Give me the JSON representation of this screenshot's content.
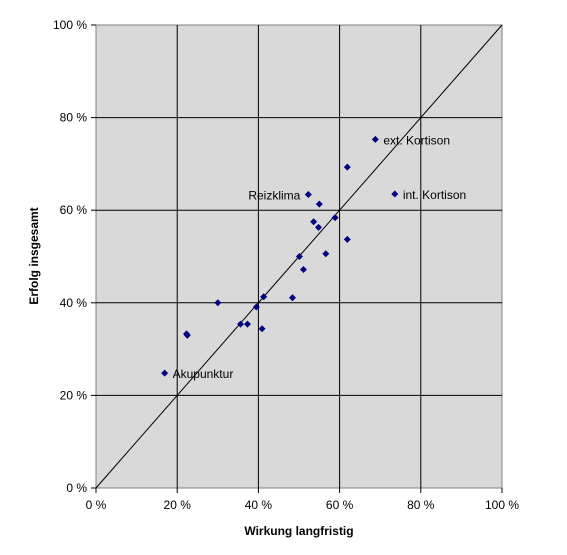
{
  "chart_data": {
    "type": "scatter",
    "xlabel": "Wirkung langfristig",
    "ylabel": "Erfolg insgesamt",
    "xlim": [
      0,
      100
    ],
    "ylim": [
      0,
      100
    ],
    "x_ticks": [
      0,
      20,
      40,
      60,
      80,
      100
    ],
    "y_ticks": [
      0,
      20,
      40,
      60,
      80,
      100
    ],
    "x_tick_labels": [
      "0 %",
      "20 %",
      "40 %",
      "60 %",
      "80 %",
      "100 %"
    ],
    "y_tick_labels": [
      "0 %",
      "20 %",
      "40 %",
      "60 %",
      "80 %",
      "100 %"
    ],
    "grid": true,
    "background_color": "#d9d9d9",
    "marker_color": "#000080",
    "reference_line": {
      "from": [
        0,
        0
      ],
      "to": [
        100,
        100
      ],
      "color": "#000000"
    },
    "points": [
      {
        "x": 16.9,
        "y": 24.8
      },
      {
        "x": 22.3,
        "y": 33.3
      },
      {
        "x": 22.5,
        "y": 33.0
      },
      {
        "x": 30.0,
        "y": 40.0
      },
      {
        "x": 35.6,
        "y": 35.4
      },
      {
        "x": 37.3,
        "y": 35.4
      },
      {
        "x": 39.5,
        "y": 39.1
      },
      {
        "x": 40.9,
        "y": 34.4
      },
      {
        "x": 41.3,
        "y": 41.3
      },
      {
        "x": 48.4,
        "y": 41.1
      },
      {
        "x": 50.1,
        "y": 50.0
      },
      {
        "x": 51.1,
        "y": 47.2
      },
      {
        "x": 52.3,
        "y": 63.4
      },
      {
        "x": 53.6,
        "y": 57.5
      },
      {
        "x": 54.8,
        "y": 56.3
      },
      {
        "x": 55.0,
        "y": 61.3
      },
      {
        "x": 56.6,
        "y": 50.6
      },
      {
        "x": 58.9,
        "y": 58.4
      },
      {
        "x": 61.9,
        "y": 53.7
      },
      {
        "x": 61.9,
        "y": 69.3
      },
      {
        "x": 68.8,
        "y": 75.3
      },
      {
        "x": 73.6,
        "y": 63.5
      }
    ],
    "annotations": [
      {
        "text": "Akupunktur",
        "x": 16.9,
        "y": 24.8,
        "anchor": "right"
      },
      {
        "text": "Reizklima",
        "x": 52.3,
        "y": 63.4,
        "anchor": "left"
      },
      {
        "text": "ext. Kortison",
        "x": 68.8,
        "y": 75.3,
        "anchor": "right"
      },
      {
        "text": "int. Kortison",
        "x": 73.6,
        "y": 63.5,
        "anchor": "right"
      }
    ]
  }
}
